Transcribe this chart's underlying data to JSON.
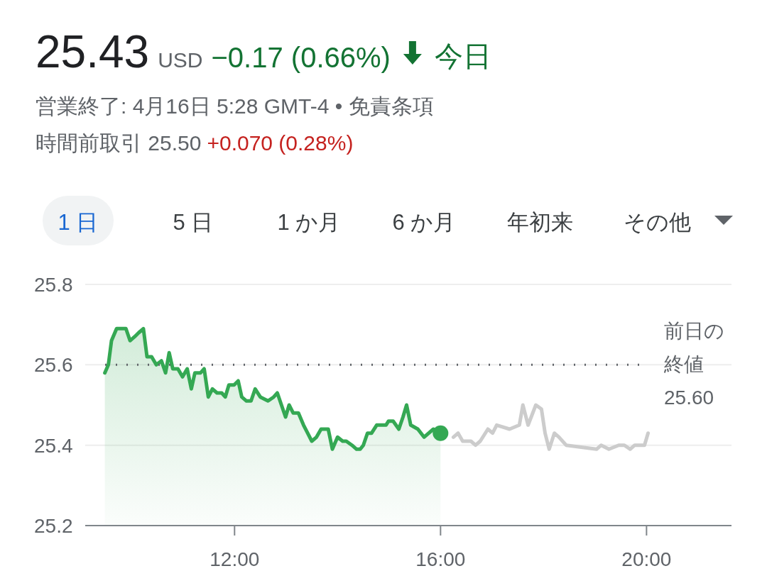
{
  "chart_data": {
    "type": "line",
    "title": "25.43",
    "subtitle": "USD",
    "annotations": [
      "−0.17 (0.66%)",
      "今日",
      "営業終了: 4月16日 5:28 GMT-4 • 免責条項",
      "時間前取引 25.50",
      "+0.070 (0.28%)",
      "1 日",
      "5 日",
      "1 か月",
      "6 か月",
      "年初来",
      "その他"
    ],
    "xlim": [
      9.1,
      21.65
    ],
    "ylim": [
      25.2,
      25.8
    ],
    "xticks": [
      {
        "value": 12,
        "label": "12:00"
      },
      {
        "value": 16,
        "label": "16:00"
      },
      {
        "value": 20,
        "label": "20:00"
      }
    ],
    "yticks": [
      25.2,
      25.4,
      25.6,
      25.8
    ],
    "grid": "y",
    "ref_lines": [
      {
        "axis": "y",
        "value": 25.6,
        "label": "前日の終値\n25.60",
        "line_style": "dotted",
        "color": "#5f6368"
      }
    ],
    "series": [
      {
        "type": "area",
        "color": "#34a853",
        "x": [
          9.48,
          9.55,
          9.61,
          9.71,
          9.89,
          9.97,
          10.06,
          10.14,
          10.23,
          10.3,
          10.39,
          10.48,
          10.58,
          10.66,
          10.73,
          10.8,
          10.9,
          10.99,
          11.08,
          11.16,
          11.23,
          11.34,
          11.41,
          11.49,
          11.57,
          11.66,
          11.75,
          11.82,
          11.89,
          11.99,
          12.07,
          12.14,
          12.23,
          12.32,
          12.4,
          12.5,
          12.65,
          12.76,
          12.83,
          12.91,
          12.99,
          13.06,
          13.14,
          13.24,
          13.34,
          13.42,
          13.5,
          13.59,
          13.68,
          13.82,
          13.9,
          14.0,
          14.1,
          14.17,
          14.28,
          14.37,
          14.44,
          14.5,
          14.58,
          14.66,
          14.76,
          14.83,
          14.94,
          14.99,
          15.08,
          15.19,
          15.27,
          15.34,
          15.42,
          15.56,
          15.68,
          15.86,
          16.0
        ],
        "values": [
          25.58,
          25.6,
          25.66,
          25.69,
          25.69,
          25.66,
          25.67,
          25.68,
          25.69,
          25.62,
          25.62,
          25.6,
          25.61,
          25.58,
          25.63,
          25.59,
          25.59,
          25.57,
          25.59,
          25.54,
          25.58,
          25.58,
          25.59,
          25.52,
          25.54,
          25.53,
          25.53,
          25.52,
          25.55,
          25.55,
          25.56,
          25.52,
          25.51,
          25.51,
          25.54,
          25.52,
          25.51,
          25.52,
          25.53,
          25.5,
          25.47,
          25.5,
          25.48,
          25.48,
          25.45,
          25.43,
          25.41,
          25.42,
          25.44,
          25.44,
          25.39,
          25.42,
          25.41,
          25.41,
          25.4,
          25.39,
          25.39,
          25.4,
          25.43,
          25.43,
          25.45,
          25.45,
          25.45,
          25.46,
          25.46,
          25.44,
          25.47,
          25.5,
          25.45,
          25.44,
          25.42,
          25.44,
          25.43
        ]
      },
      {
        "color": "#cccccc",
        "x": [
          16.25,
          16.34,
          16.43,
          16.59,
          16.68,
          16.77,
          16.92,
          17.01,
          17.09,
          17.34,
          17.53,
          17.6,
          17.7,
          17.85,
          17.96,
          18.03,
          18.11,
          18.21,
          18.3,
          18.44,
          19.03,
          19.12,
          19.27,
          19.46,
          19.57,
          19.68,
          19.77,
          19.96,
          20.03
        ],
        "values": [
          25.42,
          25.43,
          25.41,
          25.41,
          25.4,
          25.41,
          25.44,
          25.43,
          25.45,
          25.44,
          25.45,
          25.5,
          25.45,
          25.5,
          25.49,
          25.43,
          25.39,
          25.43,
          25.42,
          25.4,
          25.39,
          25.4,
          25.39,
          25.4,
          25.4,
          25.39,
          25.4,
          25.4,
          25.43
        ]
      },
      {
        "type": "scatter",
        "color": "#34a853",
        "marker": "circle",
        "x": [
          16.0
        ],
        "values": [
          25.43
        ]
      }
    ]
  }
}
